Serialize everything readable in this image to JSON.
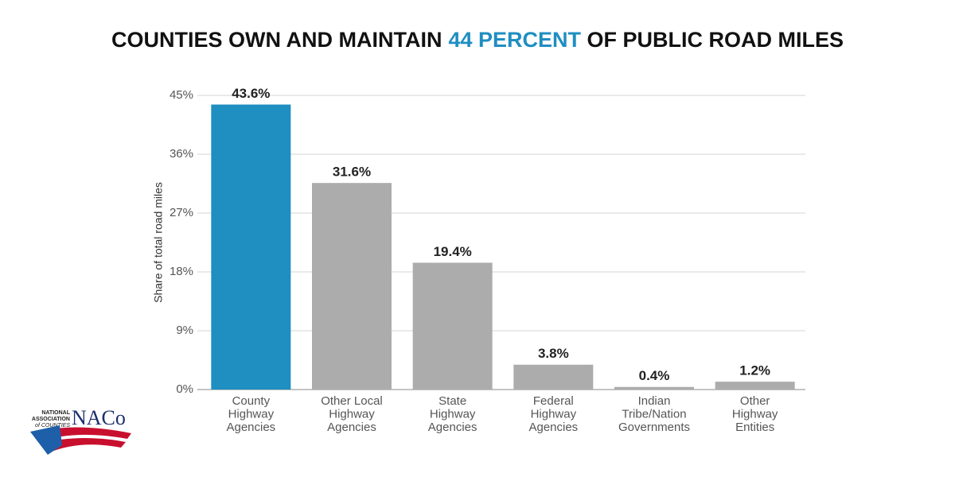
{
  "chart_data": {
    "type": "bar",
    "title": [
      "COUNTIES OWN AND MAINTAIN",
      "44 PERCENT",
      "OF PUBLIC ROAD MILES"
    ],
    "title_highlight_color": "#1f8ec1",
    "y_label": "Share of total road miles",
    "categories": [
      [
        "County",
        "Highway",
        "Agencies"
      ],
      [
        "Other Local",
        "Highway",
        "Agencies"
      ],
      [
        "State",
        "Highway",
        "Agencies"
      ],
      [
        "Federal",
        "Highway",
        "Agencies"
      ],
      [
        "Indian",
        "Tribe/Nation",
        "Governments"
      ],
      [
        "Other",
        "Highway",
        "Entities"
      ]
    ],
    "values": [
      43.6,
      31.6,
      19.4,
      3.8,
      0.4,
      1.2
    ],
    "value_labels": [
      "43.6%",
      "31.6%",
      "19.4%",
      "3.8%",
      "0.4%",
      "1.2%"
    ],
    "colors": [
      "#1f8ec1",
      "#acacac",
      "#acacac",
      "#acacac",
      "#acacac",
      "#acacac"
    ],
    "ylim": [
      0,
      45
    ],
    "yticks": [
      {
        "value": 0,
        "label": "0%"
      },
      {
        "value": 9,
        "label": "9%"
      },
      {
        "value": 18,
        "label": "18%"
      },
      {
        "value": 27,
        "label": "27%"
      },
      {
        "value": 36,
        "label": "36%"
      },
      {
        "value": 45,
        "label": "45%"
      }
    ],
    "grid": true
  },
  "logo": {
    "lines": [
      "NATIONAL",
      "ASSOCIATION",
      "of COUNTIES"
    ],
    "mark": "NACo"
  }
}
